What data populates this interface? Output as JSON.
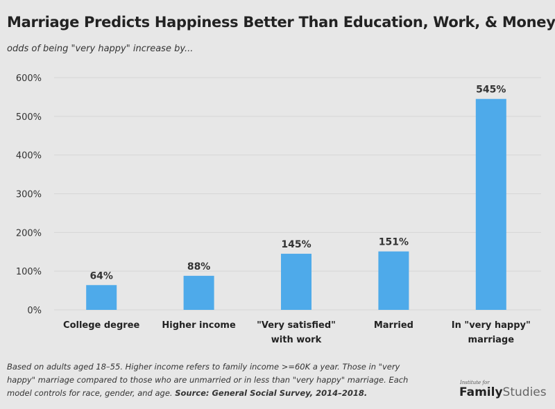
{
  "chart_data": {
    "type": "bar",
    "title": "Marriage Predicts Happiness Better Than Education, Work, & Money",
    "subtitle": "odds of being \"very happy\" increase by...",
    "categories": [
      [
        "College degree"
      ],
      [
        "Higher income"
      ],
      [
        "\"Very satisfied\"",
        "with work"
      ],
      [
        "Married"
      ],
      [
        "In \"very happy\"",
        "marriage"
      ]
    ],
    "values": [
      64,
      88,
      145,
      151,
      545
    ],
    "data_labels": [
      "64%",
      "88%",
      "145%",
      "151%",
      "545%"
    ],
    "ylim": [
      0,
      600
    ],
    "yticks": [
      0,
      100,
      200,
      300,
      400,
      500,
      600
    ],
    "ytick_labels": [
      "0%",
      "100%",
      "200%",
      "300%",
      "400%",
      "500%",
      "600%"
    ],
    "grid": true,
    "bar_color": "#4eaaea"
  },
  "footnote": {
    "text": "Based on adults aged 18–55. Higher income refers to family income >=60K a year. Those in \"very happy\" marriage compared to those who are unmarried or in less than \"very happy\" marriage. Each model controls for race, gender, and age. ",
    "source": "Source: General Social Survey, 2014–2018."
  },
  "logo": {
    "small": "Institute for",
    "bold": "Family",
    "light": "Studies"
  }
}
